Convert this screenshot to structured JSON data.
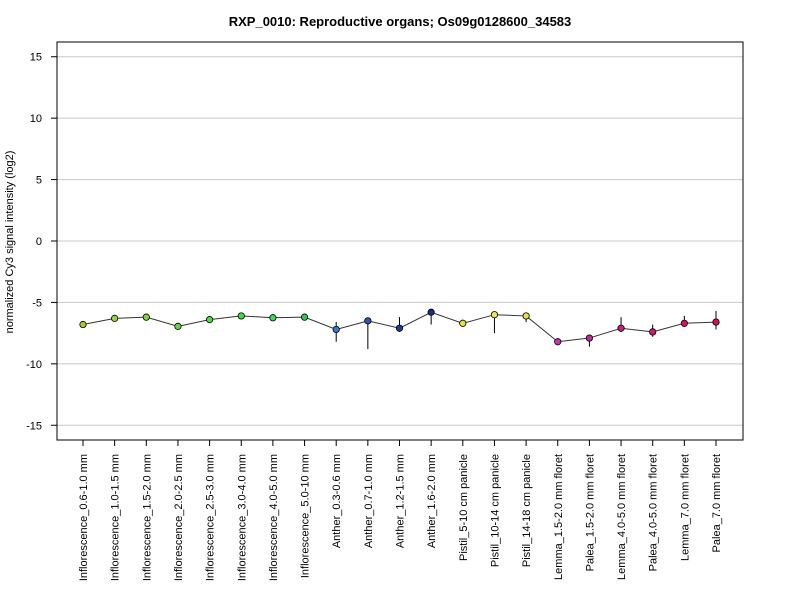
{
  "chart_data": {
    "type": "line",
    "title": "RXP_0010: Reproductive organs; Os09g0128600_34583",
    "xlabel": "",
    "ylabel": "normalized Cy3 signal intensity (log2)",
    "ylim": [
      -16.2,
      16.2
    ],
    "yticks": [
      -15,
      -10,
      -5,
      0,
      5,
      10,
      15
    ],
    "grid": true,
    "categories": [
      "Inflorescence_0.6-1.0 mm",
      "Inflorescence_1.0-1.5 mm",
      "Inflorescence_1.5-2.0 mm",
      "Inflorescence_2.0-2.5 mm",
      "Inflorescence_2.5-3.0 mm",
      "Inflorescence_3.0-4.0 mm",
      "Inflorescence_4.0-5.0 mm",
      "Inflorescence_5.0-10 mm",
      "Anther_0.3-0.6 mm",
      "Anther_0.7-1.0 mm",
      "Anther_1.2-1.5 mm",
      "Anther_1.6-2.0 mm",
      "Pistil_5-10 cm panicle",
      "Pistil_10-14 cm panicle",
      "Pistil_14-18 cm panicle",
      "Lemma_1.5-2.0 mm floret",
      "Palea_1.5-2.0 mm floret",
      "Lemma_4.0-5.0 mm floret",
      "Palea_4.0-5.0 mm floret",
      "Lemma_7.0 mm floret",
      "Palea_7.0 mm floret"
    ],
    "values": [
      -6.8,
      -6.3,
      -6.2,
      -6.95,
      -6.4,
      -6.1,
      -6.25,
      -6.2,
      -7.2,
      -6.5,
      -7.1,
      -5.8,
      -6.7,
      -6.0,
      -6.1,
      -8.2,
      -7.9,
      -7.1,
      -7.4,
      -6.7,
      -6.6
    ],
    "error_low": [
      -6.8,
      -6.3,
      -6.2,
      -6.95,
      -6.4,
      -6.1,
      -6.25,
      -6.2,
      -8.2,
      -8.8,
      -7.4,
      -6.8,
      -6.9,
      -7.5,
      -6.6,
      -8.2,
      -8.6,
      -7.4,
      -7.8,
      -7.0,
      -7.2
    ],
    "error_high": [
      -6.8,
      -6.3,
      -6.2,
      -6.95,
      -6.4,
      -6.1,
      -6.25,
      -6.2,
      -6.6,
      -6.5,
      -6.2,
      -5.8,
      -6.4,
      -6.0,
      -6.1,
      -8.2,
      -7.9,
      -6.2,
      -6.8,
      -6.1,
      -5.7
    ],
    "point_colors": [
      "#a5c832",
      "#8fd63a",
      "#7cd63a",
      "#66d63a",
      "#4ee03a",
      "#3ce03c",
      "#3cd85a",
      "#2ec850",
      "#3a78c8",
      "#2a58b8",
      "#203a9a",
      "#1a2a8a",
      "#e8e040",
      "#ece650",
      "#e8dc50",
      "#c832b0",
      "#c0289a",
      "#c8207a",
      "#d01870",
      "#d81060",
      "#d80c58"
    ],
    "line_color": "#333333"
  }
}
